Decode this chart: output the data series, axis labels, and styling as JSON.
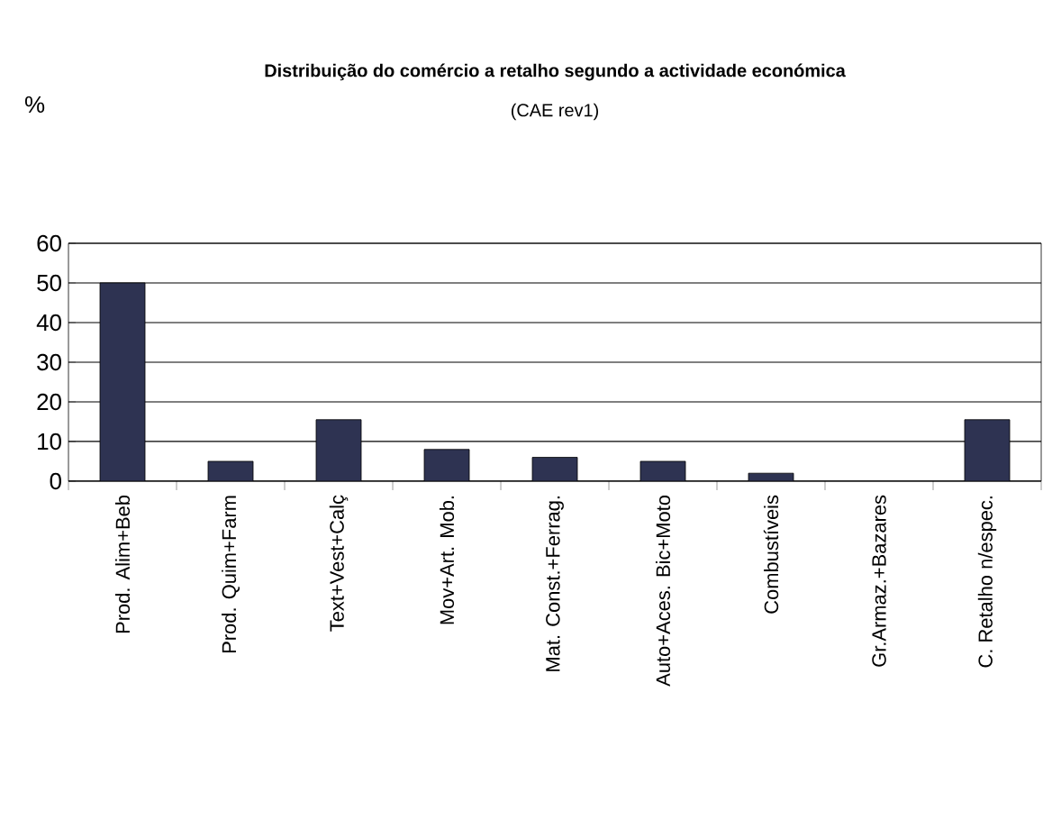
{
  "chart_data": {
    "type": "bar",
    "title": "Distribuição do comércio a retalho segundo a actividade económica",
    "subtitle": "(CAE rev1)",
    "annotations": [
      "%"
    ],
    "categories": [
      "Prod. Alim+Beb",
      "Prod. Quim+Farm",
      "Text+Vest+Calç",
      "Mov+Art. Mob.",
      "Mat. Const.+Ferrag.",
      "Auto+Aces. Bic+Moto",
      "Combustíveis",
      "Gr.Armaz.+Bazares",
      "C. Retalho n/espec."
    ],
    "values": [
      50,
      5,
      15.5,
      8,
      6,
      5,
      2,
      null,
      15.5
    ],
    "color": "#2e3352",
    "ylim": [
      0,
      60
    ],
    "yticks": [
      0,
      10,
      20,
      30,
      40,
      50,
      60
    ],
    "grid": "y"
  }
}
